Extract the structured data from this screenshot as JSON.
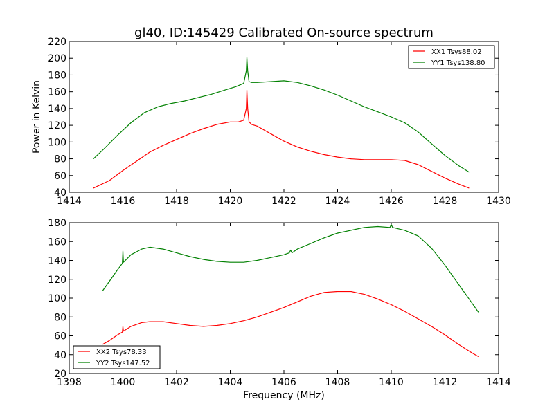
{
  "chart_data": [
    {
      "type": "line",
      "title": "gl40, ID:145429 Calibrated On-source spectrum",
      "xlabel": "",
      "ylabel": "Power in Kelvin",
      "xlim": [
        1414,
        1430
      ],
      "ylim": [
        40,
        220
      ],
      "xticks": [
        1414,
        1416,
        1418,
        1420,
        1422,
        1424,
        1426,
        1428,
        1430
      ],
      "yticks": [
        40,
        60,
        80,
        100,
        120,
        140,
        160,
        180,
        200,
        220
      ],
      "legend_position": "top-right",
      "series": [
        {
          "name": "XX1 Tsys88.02",
          "color": "#ff0000",
          "x": [
            1414.9,
            1415.5,
            1416.0,
            1416.5,
            1417.0,
            1417.5,
            1418.0,
            1418.5,
            1419.0,
            1419.5,
            1420.0,
            1420.3,
            1420.5,
            1420.6,
            1420.62,
            1420.65,
            1420.7,
            1420.8,
            1421.0,
            1421.5,
            1422.0,
            1422.5,
            1423.0,
            1423.5,
            1424.0,
            1424.5,
            1425.0,
            1425.5,
            1426.0,
            1426.5,
            1427.0,
            1427.5,
            1428.0,
            1428.5,
            1428.9
          ],
          "y": [
            45,
            54,
            66,
            77,
            88,
            96,
            103,
            110,
            116,
            121,
            124,
            124,
            126,
            140,
            162,
            140,
            124,
            121,
            119,
            110,
            101,
            94,
            89,
            85,
            82,
            80,
            79,
            79,
            79,
            78,
            73,
            65,
            57,
            50,
            45
          ]
        },
        {
          "name": "YY1 Tsys138.80",
          "color": "#008000",
          "x": [
            1414.9,
            1415.3,
            1415.8,
            1416.3,
            1416.8,
            1417.3,
            1417.8,
            1418.3,
            1418.8,
            1419.3,
            1419.8,
            1420.2,
            1420.5,
            1420.6,
            1420.62,
            1420.65,
            1420.7,
            1420.8,
            1421.0,
            1421.5,
            1422.0,
            1422.5,
            1423.0,
            1423.5,
            1424.0,
            1424.5,
            1425.0,
            1425.5,
            1426.0,
            1426.5,
            1427.0,
            1427.5,
            1428.0,
            1428.5,
            1428.9
          ],
          "y": [
            80,
            92,
            108,
            123,
            135,
            142,
            146,
            149,
            153,
            157,
            162,
            166,
            170,
            185,
            201,
            185,
            172,
            171,
            171,
            172,
            173,
            171,
            167,
            162,
            156,
            149,
            142,
            136,
            130,
            123,
            112,
            98,
            84,
            72,
            64
          ]
        }
      ]
    },
    {
      "type": "line",
      "title": "",
      "xlabel": "Frequency (MHz)",
      "ylabel": "",
      "xlim": [
        1398,
        1414
      ],
      "ylim": [
        20,
        180
      ],
      "xticks": [
        1398,
        1400,
        1402,
        1404,
        1406,
        1408,
        1410,
        1412,
        1414
      ],
      "yticks": [
        20,
        40,
        60,
        80,
        100,
        120,
        140,
        160,
        180
      ],
      "legend_position": "bottom-left",
      "series": [
        {
          "name": "XX2 Tsys78.33",
          "color": "#ff0000",
          "x": [
            1399.25,
            1399.5,
            1399.8,
            1399.98,
            1400.0,
            1400.02,
            1400.3,
            1400.7,
            1401.0,
            1401.5,
            1402.0,
            1402.5,
            1403.0,
            1403.5,
            1404.0,
            1404.5,
            1405.0,
            1405.5,
            1406.0,
            1406.5,
            1407.0,
            1407.5,
            1408.0,
            1408.5,
            1409.0,
            1409.5,
            1410.0,
            1410.5,
            1411.0,
            1411.5,
            1412.0,
            1412.5,
            1413.0,
            1413.25
          ],
          "y": [
            51,
            55,
            61,
            64,
            70,
            65,
            70,
            74,
            75,
            75,
            73,
            71,
            70,
            71,
            73,
            76,
            80,
            85,
            90,
            96,
            102,
            106,
            107,
            107,
            104,
            99,
            93,
            86,
            78,
            70,
            61,
            51,
            42,
            38
          ]
        },
        {
          "name": "YY2 Tsys147.52",
          "color": "#008000",
          "x": [
            1399.25,
            1399.5,
            1399.8,
            1399.98,
            1400.0,
            1400.02,
            1400.3,
            1400.7,
            1401.0,
            1401.5,
            1402.0,
            1402.5,
            1403.0,
            1403.5,
            1404.0,
            1404.5,
            1405.0,
            1405.5,
            1406.0,
            1406.2,
            1406.25,
            1406.3,
            1406.5,
            1407.0,
            1407.5,
            1408.0,
            1408.5,
            1409.0,
            1409.5,
            1409.95,
            1410.0,
            1410.05,
            1410.5,
            1411.0,
            1411.5,
            1412.0,
            1412.5,
            1413.0,
            1413.25
          ],
          "y": [
            108,
            118,
            130,
            137,
            150,
            138,
            146,
            152,
            154,
            152,
            148,
            144,
            141,
            139,
            138,
            138,
            140,
            143,
            146,
            148,
            151,
            148,
            152,
            158,
            164,
            169,
            172,
            175,
            176,
            175,
            178,
            175,
            172,
            166,
            153,
            135,
            115,
            95,
            85
          ]
        }
      ]
    }
  ]
}
